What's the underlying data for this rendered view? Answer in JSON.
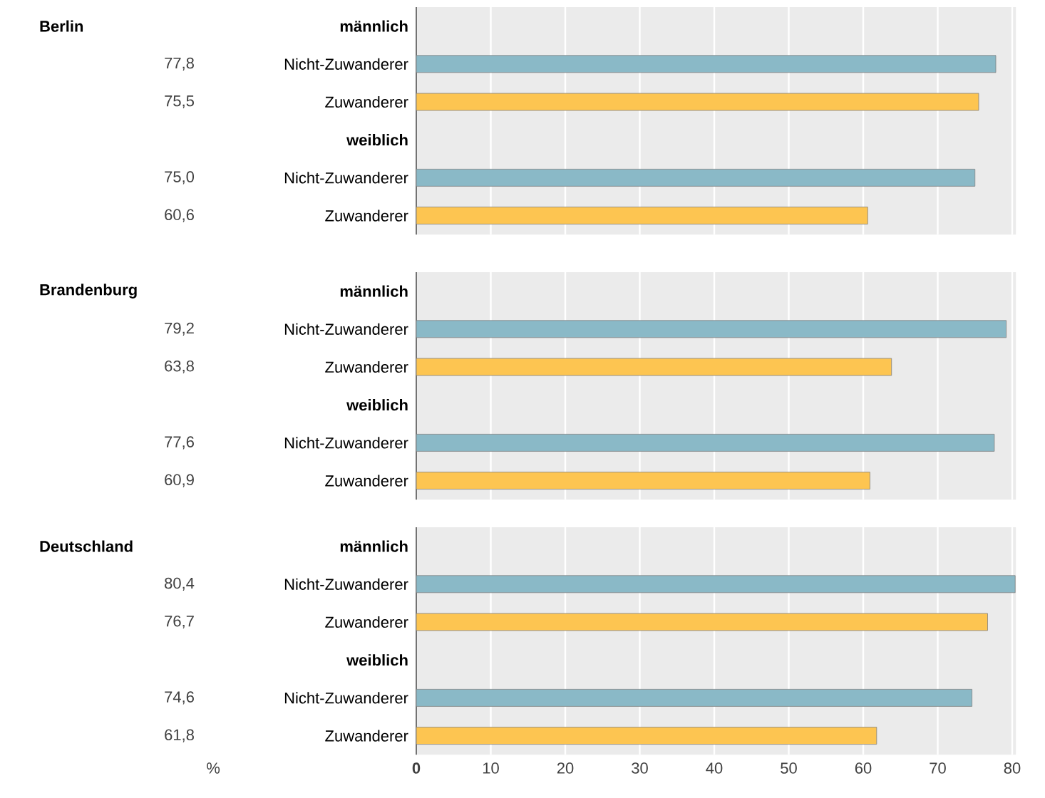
{
  "chart_data": [
    {
      "type": "bar",
      "orientation": "horizontal",
      "annotations": [
        "Berlin"
      ],
      "categories": [
        "männlich",
        "Nicht-Zuwanderer",
        "Zuwanderer",
        "weiblich",
        "Nicht-Zuwanderer",
        "Zuwanderer"
      ],
      "values": [
        null,
        77.8,
        75.5,
        null,
        75.0,
        60.6
      ],
      "value_labels": [
        null,
        "77,8",
        "75,5",
        null,
        "75,0",
        "60,6"
      ],
      "colors": [
        null,
        "#8ab9c7",
        "#fdc551",
        null,
        "#8ab9c7",
        "#fdc551"
      ],
      "xlim": [
        0,
        80.5
      ],
      "xticks": [
        0,
        10,
        20,
        30,
        40,
        50,
        60,
        70,
        80
      ],
      "tick_labels": "y",
      "grid": "x"
    },
    {
      "type": "bar",
      "orientation": "horizontal",
      "annotations": [
        "Brandenburg"
      ],
      "categories": [
        "männlich",
        "Nicht-Zuwanderer",
        "Zuwanderer",
        "weiblich",
        "Nicht-Zuwanderer",
        "Zuwanderer"
      ],
      "values": [
        null,
        79.2,
        63.8,
        null,
        77.6,
        60.9
      ],
      "value_labels": [
        null,
        "79,2",
        "63,8",
        null,
        "77,6",
        "60,9"
      ],
      "colors": [
        null,
        "#8ab9c7",
        "#fdc551",
        null,
        "#8ab9c7",
        "#fdc551"
      ],
      "xlim": [
        0,
        80.5
      ],
      "xticks": [
        0,
        10,
        20,
        30,
        40,
        50,
        60,
        70,
        80
      ],
      "tick_labels": "y",
      "grid": "x"
    },
    {
      "type": "bar",
      "orientation": "horizontal",
      "annotations": [
        "Deutschland"
      ],
      "xlabel": "%",
      "categories": [
        "männlich",
        "Nicht-Zuwanderer",
        "Zuwanderer",
        "weiblich",
        "Nicht-Zuwanderer",
        "Zuwanderer"
      ],
      "values": [
        null,
        80.4,
        76.7,
        null,
        74.6,
        61.8
      ],
      "value_labels": [
        null,
        "80,4",
        "76,7",
        null,
        "74,6",
        "61,8"
      ],
      "colors": [
        null,
        "#8ab9c7",
        "#fdc551",
        null,
        "#8ab9c7",
        "#fdc551"
      ],
      "xlim": [
        0,
        80.5
      ],
      "xticks": [
        {
          "value": 0,
          "label": "**0**"
        },
        10,
        20,
        30,
        40,
        50,
        60,
        70,
        80
      ],
      "grid": "x"
    }
  ]
}
